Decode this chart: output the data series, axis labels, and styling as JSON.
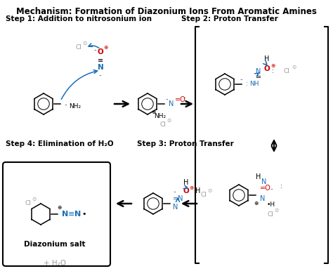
{
  "title": "Mechanism: Formation of Diazonium Ions From Aromatic Amines",
  "bg_color": "#ffffff",
  "step1_label": "Step 1: Addition to nitrosonium ion",
  "step2_label": "Step 2: Proton Transfer",
  "step3_label": "Step 3: Proton Transfer",
  "step4_label": "Step 4: Elimination of H₂O",
  "diazonium_label": "Diazonium salt",
  "water_label": "+ H₂O",
  "black": "#000000",
  "red": "#cc0000",
  "blue": "#1a6eb5",
  "gray": "#999999"
}
